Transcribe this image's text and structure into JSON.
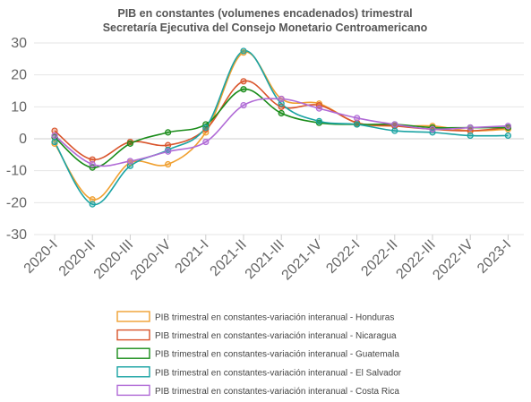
{
  "chart_data": {
    "type": "line",
    "title": "PIB en constantes (volumenes encadenados)  trimestral",
    "subtitle": "Secretaría Ejecutiva del Consejo Monetario Centroamericano",
    "xlabel": "",
    "ylabel": "",
    "categories": [
      "2020-I",
      "2020-II",
      "2020-III",
      "2020-IV",
      "2021-I",
      "2021-II",
      "2021-III",
      "2021-IV",
      "2022-I",
      "2022-II",
      "2022-III",
      "2022-IV",
      "2023-I"
    ],
    "ylim": [
      -30,
      30
    ],
    "yticks": [
      "30",
      "20",
      "10",
      "0",
      "-10",
      "-20",
      "-30"
    ],
    "grid": true,
    "legend_position": "bottom",
    "series": [
      {
        "name": "PIB trimestral en constantes-variación interanual - Honduras",
        "color": "#f0a030",
        "values": [
          -1.5,
          -19.0,
          -7.5,
          -8.0,
          2.0,
          27.0,
          12.5,
          11.0,
          5.0,
          4.0,
          4.0,
          2.5,
          3.0
        ]
      },
      {
        "name": "PIB trimestral en constantes-variación interanual - Nicaragua",
        "color": "#d9542b",
        "values": [
          2.5,
          -6.5,
          -1.0,
          -2.0,
          3.0,
          18.0,
          10.0,
          10.5,
          5.0,
          4.0,
          3.0,
          2.5,
          3.5
        ]
      },
      {
        "name": "PIB trimestral en constantes-variación interanual - Guatemala",
        "color": "#1a8c1a",
        "values": [
          0.5,
          -9.0,
          -1.5,
          2.0,
          4.5,
          15.5,
          8.0,
          5.0,
          4.5,
          4.5,
          3.5,
          3.5,
          3.5
        ]
      },
      {
        "name": "PIB trimestral en constantes-variación interanual - El Salvador",
        "color": "#1aa3a3",
        "values": [
          -1.0,
          -20.5,
          -8.5,
          -3.5,
          3.5,
          27.5,
          11.0,
          5.5,
          4.5,
          2.5,
          2.0,
          1.0,
          1.0
        ]
      },
      {
        "name": "PIB trimestral en constantes-variación interanual - Costa Rica",
        "color": "#b06ad6",
        "values": [
          1.0,
          -8.0,
          -7.0,
          -4.0,
          -1.0,
          10.5,
          12.5,
          9.5,
          6.5,
          4.5,
          3.0,
          3.5,
          4.0
        ]
      }
    ]
  }
}
